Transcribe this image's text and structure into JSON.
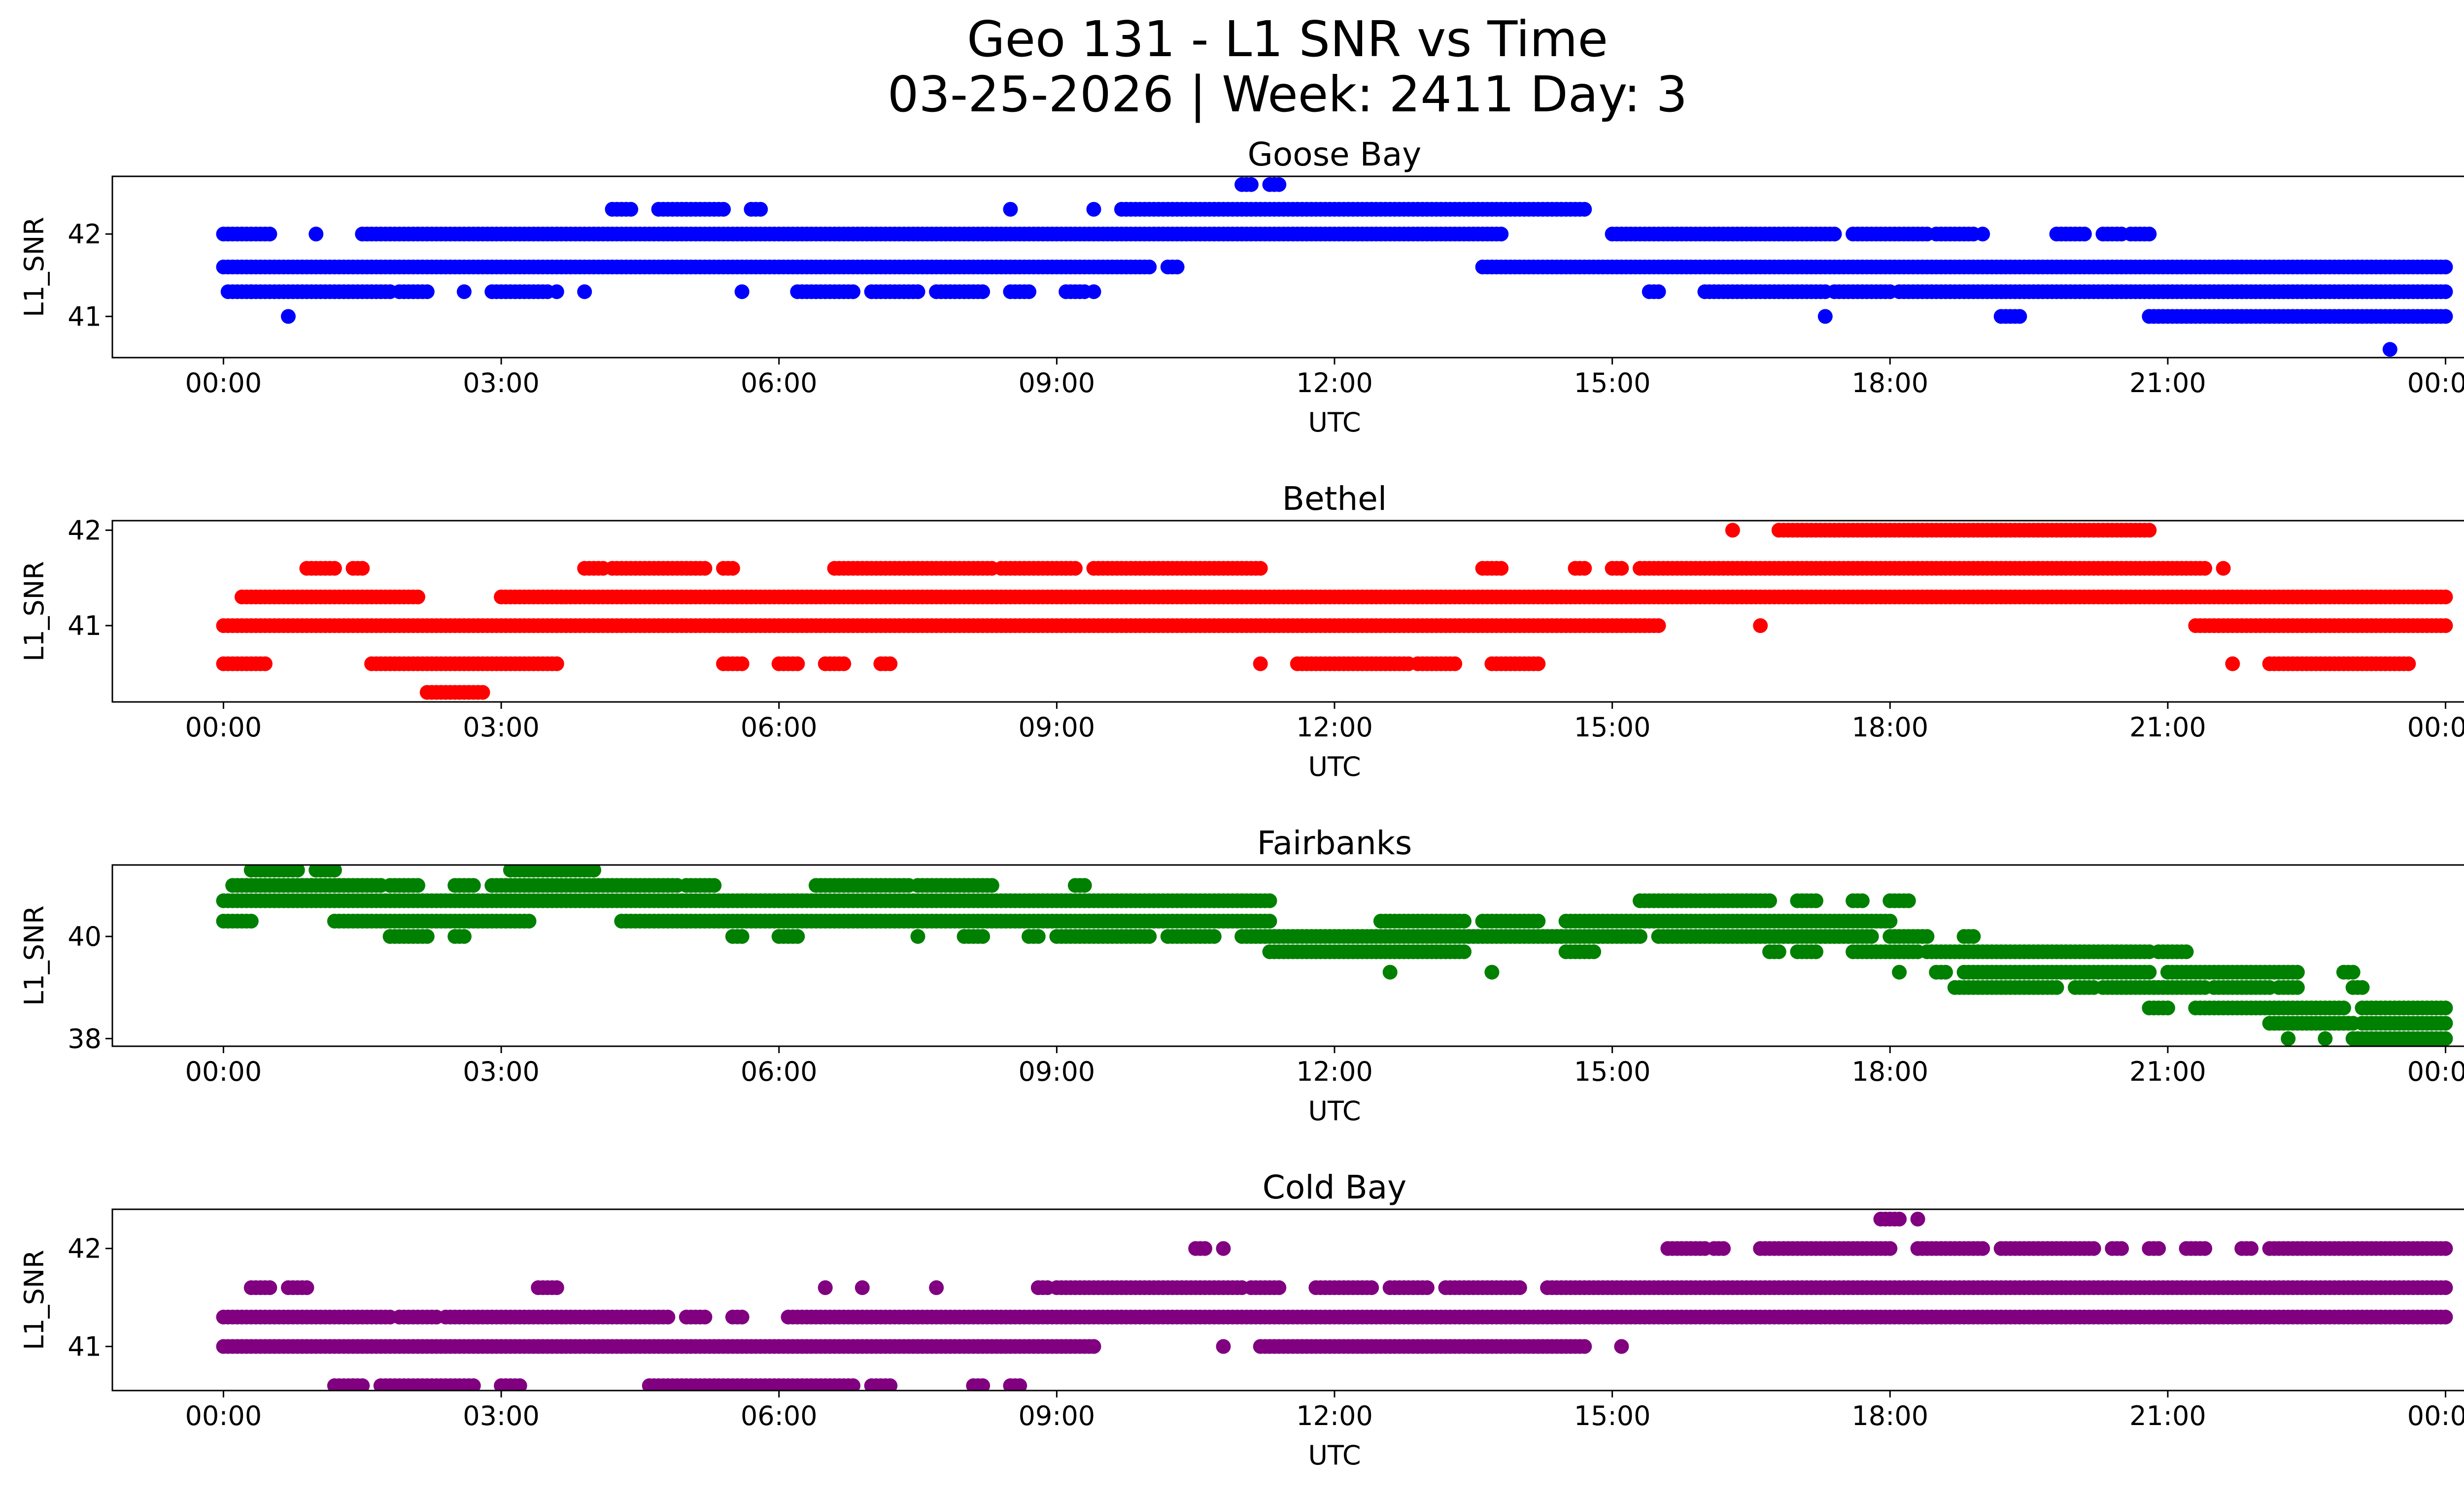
{
  "figure": {
    "title_line1": "Geo 131 - L1 SNR vs Time",
    "title_line2": "03-25-2026 | Week: 2411 Day: 3"
  },
  "chart_data": [
    {
      "type": "scatter",
      "title": "Goose Bay",
      "xlabel": "UTC",
      "ylabel": "L1_SNR",
      "color": "#0000ff",
      "xlim": [
        -1.2,
        25.2
      ],
      "ylim": [
        40.5,
        42.7
      ],
      "x_ticks": [
        "00:00",
        "03:00",
        "06:00",
        "09:00",
        "12:00",
        "15:00",
        "18:00",
        "21:00",
        "00:00"
      ],
      "y_ticks": [
        41,
        42
      ],
      "bands": [
        {
          "y": 42.0,
          "segments": [
            [
              0.0,
              0.5
            ],
            [
              1.0,
              1.0
            ],
            [
              1.5,
              13.8
            ],
            [
              15.0,
              17.4
            ],
            [
              17.6,
              18.4
            ],
            [
              18.5,
              18.9
            ],
            [
              19.0,
              19.0
            ],
            [
              19.8,
              20.1
            ],
            [
              20.3,
              20.5
            ],
            [
              20.6,
              20.8
            ]
          ],
          "step": 0.05
        },
        {
          "y": 41.6,
          "segments": [
            [
              0.0,
              10.0
            ],
            [
              10.2,
              10.3
            ],
            [
              13.6,
              24.0
            ]
          ],
          "step": 0.05
        },
        {
          "y": 41.3,
          "segments": [
            [
              0.05,
              0.3
            ],
            [
              0.3,
              1.8
            ],
            [
              1.9,
              2.2
            ],
            [
              2.6,
              2.6
            ],
            [
              2.9,
              3.5
            ],
            [
              3.6,
              3.6
            ],
            [
              3.9,
              3.9
            ],
            [
              5.6,
              5.6
            ],
            [
              6.2,
              6.8
            ],
            [
              7.0,
              7.5
            ],
            [
              7.7,
              8.2
            ],
            [
              8.5,
              8.7
            ],
            [
              9.1,
              9.3
            ],
            [
              9.4,
              9.4
            ],
            [
              15.4,
              15.5
            ],
            [
              16.0,
              17.3
            ],
            [
              17.4,
              18.0
            ],
            [
              18.1,
              24.0
            ]
          ],
          "step": 0.05
        },
        {
          "y": 41.0,
          "segments": [
            [
              0.7,
              0.7
            ],
            [
              17.3,
              17.3
            ],
            [
              19.2,
              19.4
            ],
            [
              20.8,
              24.0
            ]
          ],
          "step": 0.05
        },
        {
          "y": 42.3,
          "segments": [
            [
              4.2,
              4.4
            ],
            [
              4.7,
              5.4
            ],
            [
              5.7,
              5.8
            ],
            [
              8.5,
              8.5
            ],
            [
              9.4,
              9.4
            ],
            [
              9.7,
              14.7
            ]
          ],
          "step": 0.05
        },
        {
          "y": 42.6,
          "segments": [
            [
              11.0,
              11.1
            ],
            [
              11.3,
              11.4
            ]
          ],
          "step": 0.05
        },
        {
          "y": 40.6,
          "segments": [
            [
              23.4,
              23.4
            ]
          ],
          "step": 0.05
        }
      ]
    },
    {
      "type": "scatter",
      "title": "Bethel",
      "xlabel": "UTC",
      "ylabel": "L1_SNR",
      "color": "#ff0000",
      "xlim": [
        -1.2,
        25.2
      ],
      "ylim": [
        40.2,
        42.1
      ],
      "x_ticks": [
        "00:00",
        "03:00",
        "06:00",
        "09:00",
        "12:00",
        "15:00",
        "18:00",
        "21:00",
        "00:00"
      ],
      "y_ticks": [
        41,
        42
      ],
      "bands": [
        {
          "y": 41.0,
          "segments": [
            [
              0.0,
              15.5
            ],
            [
              16.6,
              16.6
            ],
            [
              21.3,
              24.0
            ]
          ],
          "step": 0.05
        },
        {
          "y": 41.3,
          "segments": [
            [
              0.2,
              2.1
            ],
            [
              3.0,
              24.0
            ]
          ],
          "step": 0.05
        },
        {
          "y": 40.6,
          "segments": [
            [
              0.0,
              0.45
            ],
            [
              1.6,
              3.6
            ],
            [
              5.4,
              5.6
            ],
            [
              6.0,
              6.2
            ],
            [
              6.5,
              6.7
            ],
            [
              7.1,
              7.2
            ],
            [
              11.2,
              11.2
            ],
            [
              11.6,
              12.8
            ],
            [
              12.9,
              13.3
            ],
            [
              13.7,
              14.2
            ]
          ],
          "step": 0.05
        },
        {
          "y": 41.6,
          "segments": [
            [
              0.9,
              1.2
            ],
            [
              1.4,
              1.5
            ],
            [
              3.9,
              4.1
            ],
            [
              4.2,
              5.2
            ],
            [
              5.4,
              5.5
            ],
            [
              6.6,
              8.3
            ],
            [
              8.4,
              9.2
            ],
            [
              9.4,
              11.2
            ],
            [
              13.6,
              13.8
            ],
            [
              14.6,
              14.7
            ],
            [
              15.0,
              15.1
            ],
            [
              15.3,
              21.4
            ],
            [
              21.6,
              21.6
            ]
          ],
          "step": 0.05
        },
        {
          "y": 40.3,
          "segments": [
            [
              2.2,
              2.8
            ]
          ],
          "step": 0.05
        },
        {
          "y": 42.0,
          "segments": [
            [
              16.3,
              16.3
            ],
            [
              16.8,
              20.8
            ]
          ],
          "step": 0.05
        },
        {
          "y": 40.6,
          "segments": [
            [
              21.7,
              21.7
            ],
            [
              22.1,
              23.6
            ]
          ],
          "step": 0.05
        }
      ]
    },
    {
      "type": "scatter",
      "title": "Fairbanks",
      "xlabel": "UTC",
      "ylabel": "L1_SNR",
      "color": "#008000",
      "xlim": [
        -1.2,
        25.2
      ],
      "ylim": [
        37.85,
        41.4
      ],
      "x_ticks": [
        "00:00",
        "03:00",
        "06:00",
        "09:00",
        "12:00",
        "15:00",
        "18:00",
        "21:00",
        "00:00"
      ],
      "y_ticks": [
        38,
        40
      ],
      "bands": [
        {
          "y": 41.3,
          "segments": [
            [
              0.3,
              0.8
            ],
            [
              1.0,
              1.2
            ],
            [
              3.1,
              4.0
            ]
          ],
          "step": 0.05
        },
        {
          "y": 41.0,
          "segments": [
            [
              0.1,
              1.7
            ],
            [
              1.8,
              2.1
            ],
            [
              2.5,
              2.7
            ],
            [
              2.9,
              4.9
            ],
            [
              5.0,
              5.3
            ],
            [
              6.4,
              7.4
            ],
            [
              7.5,
              8.3
            ],
            [
              9.2,
              9.3
            ]
          ],
          "step": 0.05
        },
        {
          "y": 40.7,
          "segments": [
            [
              0.0,
              11.3
            ],
            [
              15.3,
              16.7
            ],
            [
              17.0,
              17.2
            ],
            [
              17.6,
              17.7
            ],
            [
              18.0,
              18.2
            ]
          ],
          "step": 0.05
        },
        {
          "y": 40.3,
          "segments": [
            [
              0.0,
              0.3
            ],
            [
              1.2,
              3.3
            ],
            [
              4.3,
              11.3
            ],
            [
              12.5,
              13.4
            ],
            [
              13.6,
              14.2
            ],
            [
              14.5,
              18.0
            ]
          ],
          "step": 0.05
        },
        {
          "y": 40.0,
          "segments": [
            [
              1.8,
              2.2
            ],
            [
              2.5,
              2.6
            ],
            [
              5.5,
              5.6
            ],
            [
              6.0,
              6.2
            ],
            [
              7.5,
              7.5
            ],
            [
              8.0,
              8.2
            ],
            [
              8.7,
              8.8
            ],
            [
              9.0,
              10.0
            ],
            [
              10.2,
              10.7
            ],
            [
              11.0,
              15.3
            ],
            [
              15.5,
              17.8
            ],
            [
              18.0,
              18.4
            ],
            [
              18.8,
              18.9
            ]
          ],
          "step": 0.05
        },
        {
          "y": 39.7,
          "segments": [
            [
              11.3,
              13.4
            ],
            [
              14.5,
              14.8
            ],
            [
              16.7,
              16.8
            ],
            [
              17.0,
              17.2
            ],
            [
              17.6,
              18.3
            ],
            [
              18.4,
              20.8
            ],
            [
              20.9,
              21.2
            ]
          ],
          "step": 0.05
        },
        {
          "y": 39.3,
          "segments": [
            [
              12.6,
              12.6
            ],
            [
              13.7,
              13.7
            ],
            [
              18.1,
              18.1
            ],
            [
              18.5,
              18.6
            ],
            [
              18.8,
              20.8
            ],
            [
              21.0,
              22.4
            ],
            [
              22.9,
              23.0
            ]
          ],
          "step": 0.05
        },
        {
          "y": 39.0,
          "segments": [
            [
              18.7,
              19.8
            ],
            [
              20.0,
              20.2
            ],
            [
              20.3,
              21.4
            ],
            [
              21.5,
              22.1
            ],
            [
              22.2,
              22.4
            ],
            [
              23.0,
              23.1
            ]
          ],
          "step": 0.05
        },
        {
          "y": 38.6,
          "segments": [
            [
              20.8,
              21.0
            ],
            [
              21.3,
              22.9
            ],
            [
              23.1,
              24.0
            ]
          ],
          "step": 0.05
        },
        {
          "y": 38.3,
          "segments": [
            [
              22.1,
              23.0
            ],
            [
              23.1,
              24.0
            ]
          ],
          "step": 0.05
        },
        {
          "y": 38.0,
          "segments": [
            [
              22.3,
              22.3
            ],
            [
              22.7,
              22.7
            ],
            [
              23.0,
              24.0
            ]
          ],
          "step": 0.05
        }
      ]
    },
    {
      "type": "scatter",
      "title": "Cold Bay",
      "xlabel": "UTC",
      "ylabel": "L1_SNR",
      "color": "#800080",
      "xlim": [
        -1.2,
        25.2
      ],
      "ylim": [
        40.55,
        42.4
      ],
      "x_ticks": [
        "00:00",
        "03:00",
        "06:00",
        "09:00",
        "12:00",
        "15:00",
        "18:00",
        "21:00",
        "00:00"
      ],
      "y_ticks": [
        41,
        42
      ],
      "bands": [
        {
          "y": 41.3,
          "segments": [
            [
              0.0,
              1.8
            ],
            [
              1.9,
              2.3
            ],
            [
              2.4,
              4.8
            ],
            [
              5.0,
              5.2
            ],
            [
              5.5,
              5.6
            ],
            [
              6.1,
              24.0
            ]
          ],
          "step": 0.05
        },
        {
          "y": 41.0,
          "segments": [
            [
              0.0,
              9.4
            ],
            [
              10.8,
              10.8
            ],
            [
              11.2,
              14.7
            ],
            [
              15.1,
              15.1
            ]
          ],
          "step": 0.05
        },
        {
          "y": 41.6,
          "segments": [
            [
              0.3,
              0.5
            ],
            [
              0.7,
              0.9
            ],
            [
              3.4,
              3.6
            ],
            [
              6.5,
              6.5
            ],
            [
              6.9,
              6.9
            ],
            [
              7.7,
              7.7
            ],
            [
              8.8,
              8.9
            ],
            [
              9.0,
              11.0
            ],
            [
              11.1,
              11.4
            ],
            [
              11.8,
              12.4
            ],
            [
              12.6,
              13.0
            ],
            [
              13.2,
              14.0
            ],
            [
              14.3,
              24.0
            ]
          ],
          "step": 0.05
        },
        {
          "y": 40.6,
          "segments": [
            [
              1.2,
              1.4
            ],
            [
              1.4,
              1.5
            ],
            [
              1.7,
              2.7
            ],
            [
              3.0,
              3.2
            ],
            [
              4.6,
              6.8
            ],
            [
              7.0,
              7.2
            ],
            [
              8.1,
              8.2
            ],
            [
              8.5,
              8.6
            ]
          ],
          "step": 0.05
        },
        {
          "y": 42.0,
          "segments": [
            [
              10.5,
              10.6
            ],
            [
              10.8,
              10.8
            ],
            [
              15.6,
              16.0
            ],
            [
              16.1,
              16.2
            ],
            [
              16.6,
              18.0
            ],
            [
              18.3,
              19.0
            ],
            [
              19.2,
              20.2
            ],
            [
              20.4,
              20.5
            ],
            [
              20.8,
              20.9
            ],
            [
              21.2,
              21.4
            ],
            [
              21.8,
              21.9
            ],
            [
              22.1,
              24.0
            ]
          ],
          "step": 0.05
        },
        {
          "y": 42.3,
          "segments": [
            [
              17.9,
              18.1
            ],
            [
              18.3,
              18.3
            ]
          ],
          "step": 0.05
        }
      ]
    }
  ]
}
